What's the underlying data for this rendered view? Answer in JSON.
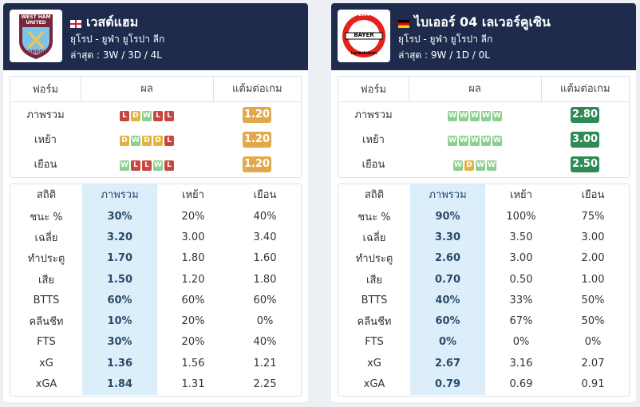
{
  "teams": [
    {
      "name": "เวสต์แฮม",
      "logo_text": [
        "WEST HAM",
        "UNITED",
        "LONDON"
      ],
      "league": "ยุโรป - ยูฟ่า ยูโรปา ลีก",
      "recent": "ล่าสุด : 3W / 3D / 4L",
      "form": {
        "headers": [
          "ฟอร์ม",
          "ผล",
          "แต้มต่อเกม"
        ],
        "rows": [
          {
            "label": "ภาพรวม",
            "results": [
              "L",
              "D",
              "W",
              "L",
              "L"
            ],
            "ppg": "1.20"
          },
          {
            "label": "เหย้า",
            "results": [
              "D",
              "W",
              "D",
              "D",
              "L"
            ],
            "ppg": "1.20"
          },
          {
            "label": "เยือน",
            "results": [
              "W",
              "L",
              "L",
              "W",
              "L"
            ],
            "ppg": "1.20"
          }
        ]
      },
      "stats": {
        "headers": [
          "สถิติ",
          "ภาพรวม",
          "เหย้า",
          "เยือน"
        ],
        "rows": [
          [
            "ชนะ %",
            "30%",
            "20%",
            "40%"
          ],
          [
            "เฉลี่ย",
            "3.20",
            "3.00",
            "3.40"
          ],
          [
            "ทำประตู",
            "1.70",
            "1.80",
            "1.60"
          ],
          [
            "เสีย",
            "1.50",
            "1.20",
            "1.80"
          ],
          [
            "BTTS",
            "60%",
            "60%",
            "60%"
          ],
          [
            "คลีนชีท",
            "10%",
            "20%",
            "0%"
          ],
          [
            "FTS",
            "30%",
            "20%",
            "40%"
          ],
          [
            "xG",
            "1.36",
            "1.56",
            "1.21"
          ],
          [
            "xGA",
            "1.84",
            "1.31",
            "2.25"
          ]
        ]
      }
    },
    {
      "name": "ไบเออร์ 04 เลเวอร์คูเซิน",
      "logo_text": [
        "1904",
        "BAYER",
        "Leverkusen"
      ],
      "league": "ยุโรป - ยูฟ่า ยูโรปา ลีก",
      "recent": "ล่าสุด : 9W / 1D / 0L",
      "form": {
        "headers": [
          "ฟอร์ม",
          "ผล",
          "แต้มต่อเกม"
        ],
        "rows": [
          {
            "label": "ภาพรวม",
            "results": [
              "W",
              "W",
              "W",
              "W",
              "W"
            ],
            "ppg": "2.80"
          },
          {
            "label": "เหย้า",
            "results": [
              "W",
              "W",
              "W",
              "W",
              "W"
            ],
            "ppg": "3.00"
          },
          {
            "label": "เยือน",
            "results": [
              "W",
              "D",
              "W",
              "W"
            ],
            "ppg": "2.50"
          }
        ]
      },
      "stats": {
        "headers": [
          "สถิติ",
          "ภาพรวม",
          "เหย้า",
          "เยือน"
        ],
        "rows": [
          [
            "ชนะ %",
            "90%",
            "100%",
            "75%"
          ],
          [
            "เฉลี่ย",
            "3.30",
            "3.50",
            "3.00"
          ],
          [
            "ทำประตู",
            "2.60",
            "3.00",
            "2.00"
          ],
          [
            "เสีย",
            "0.70",
            "0.50",
            "1.00"
          ],
          [
            "BTTS",
            "40%",
            "33%",
            "50%"
          ],
          [
            "คลีนชีท",
            "60%",
            "67%",
            "50%"
          ],
          [
            "FTS",
            "0%",
            "0%",
            "0%"
          ],
          [
            "xG",
            "2.67",
            "3.16",
            "2.07"
          ],
          [
            "xGA",
            "0.79",
            "0.69",
            "0.91"
          ]
        ]
      }
    }
  ]
}
